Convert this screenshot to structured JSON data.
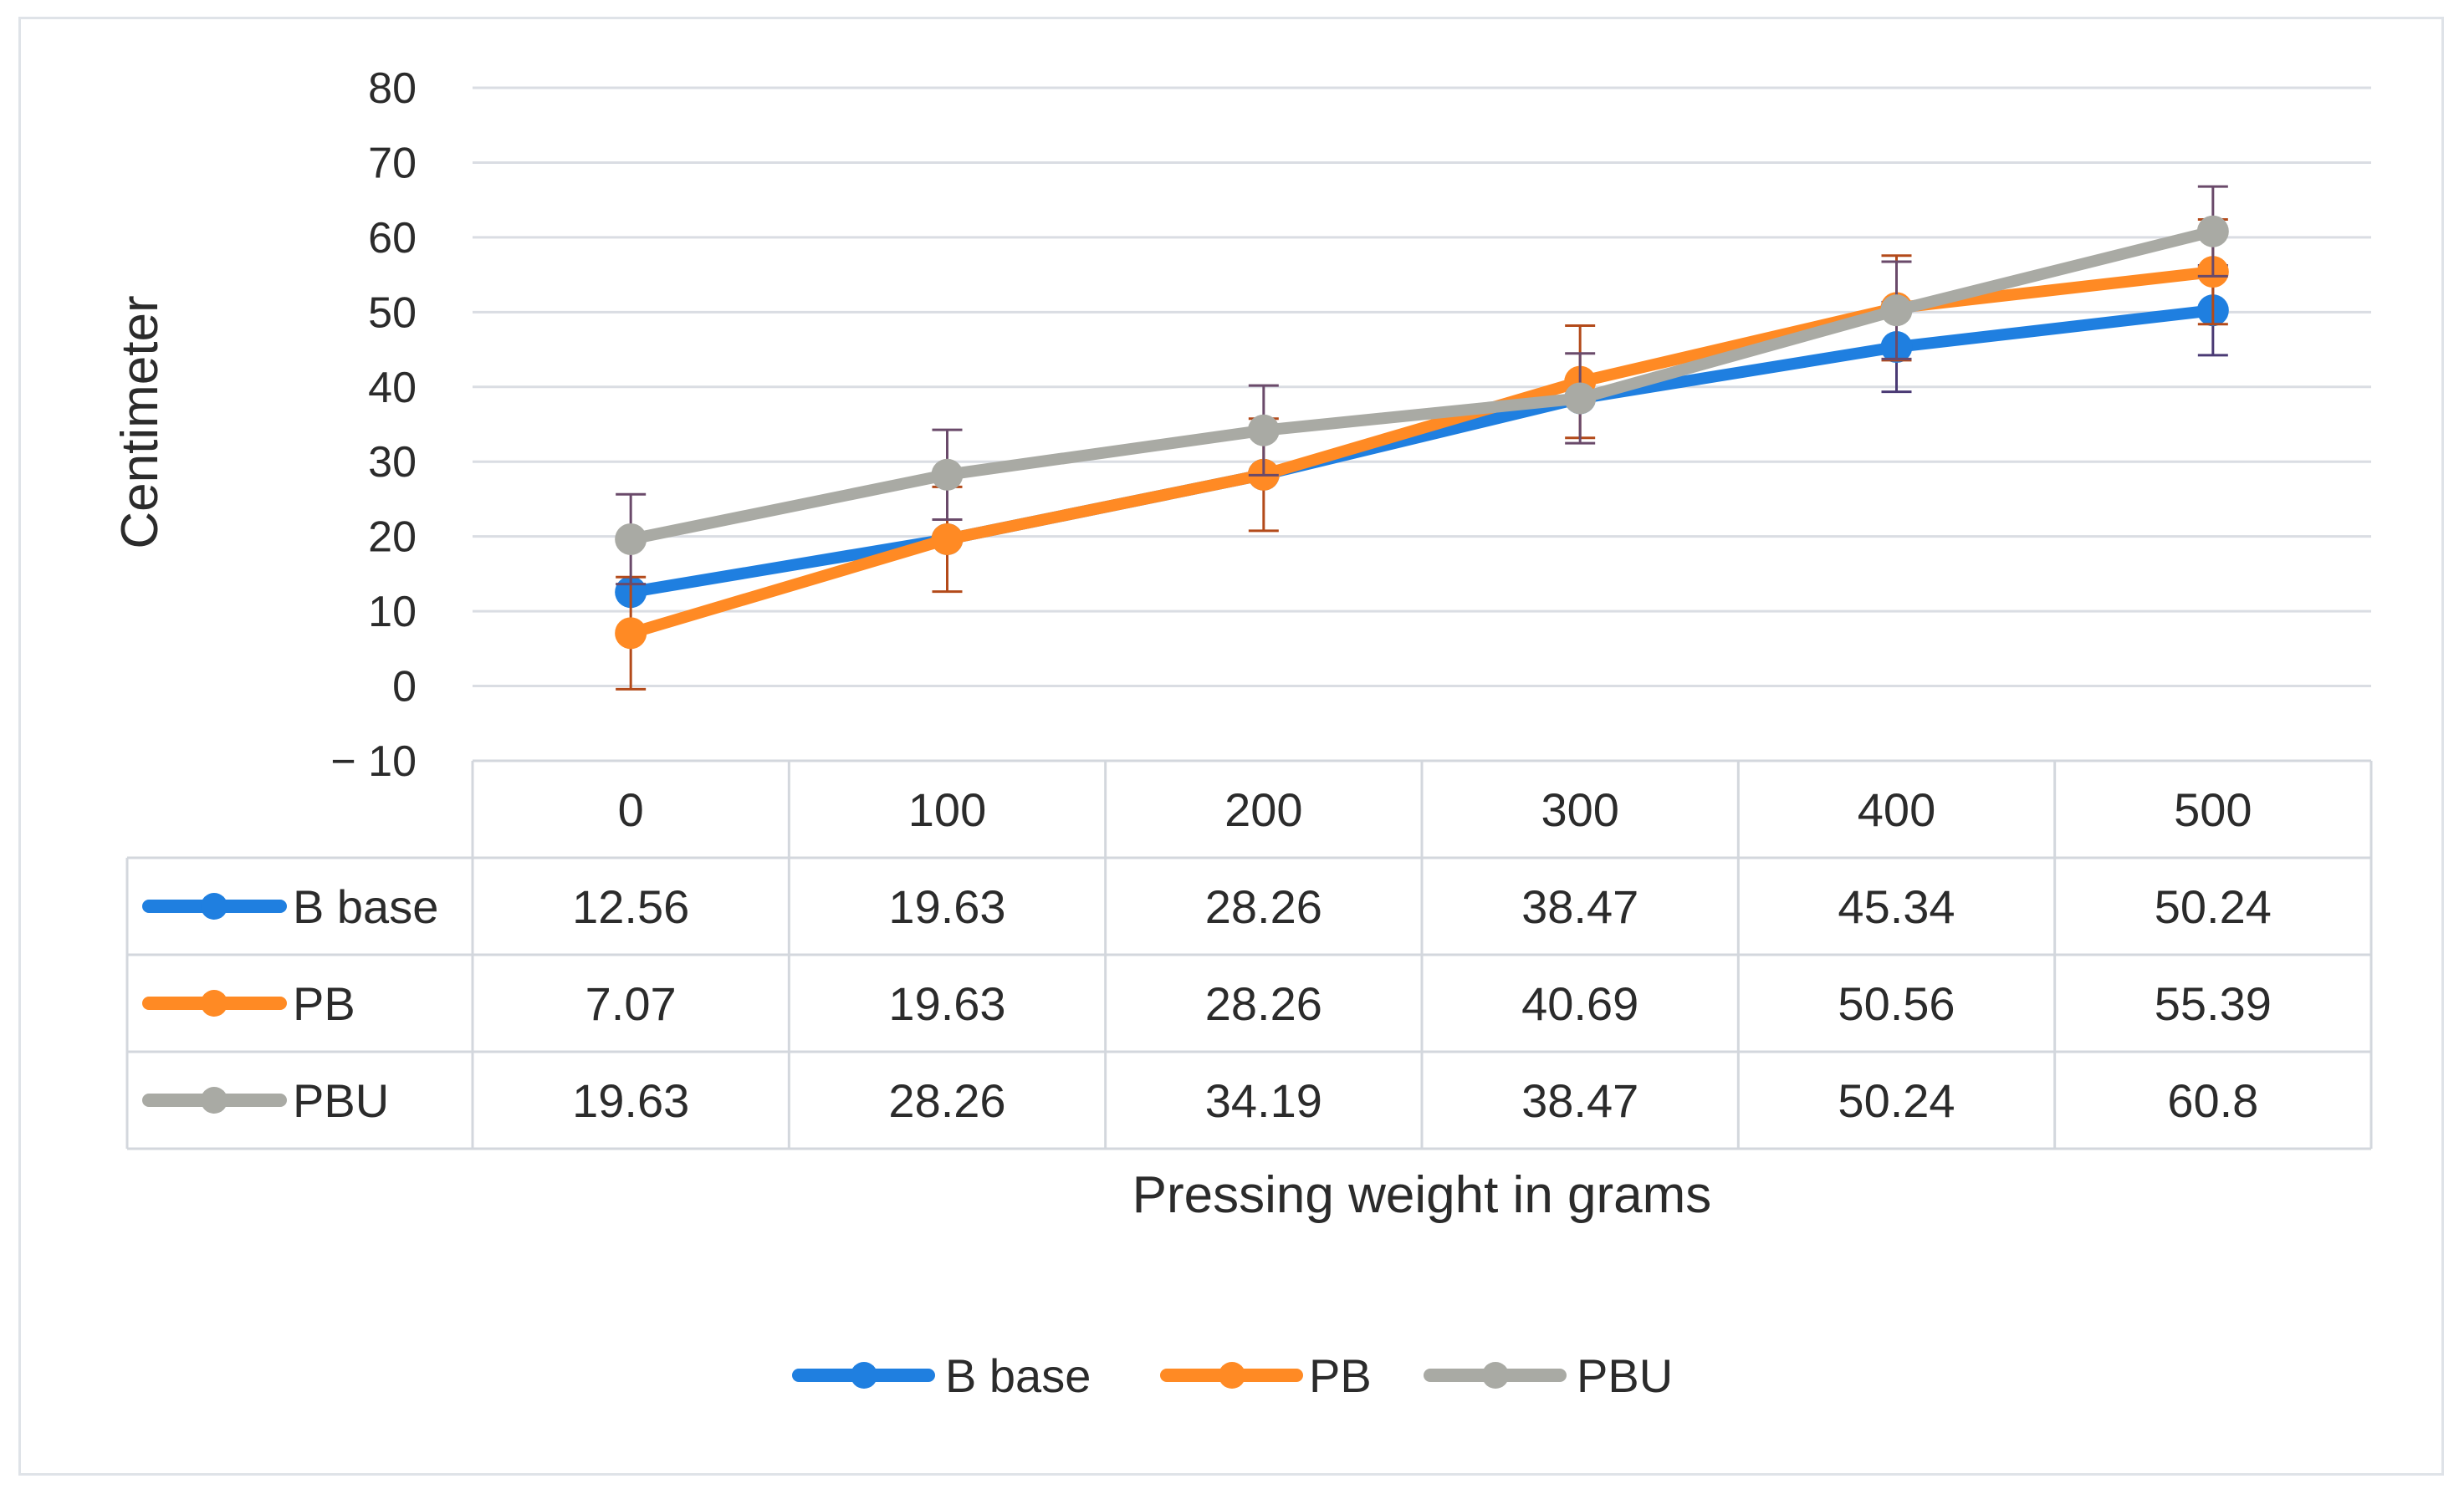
{
  "chart_data": {
    "type": "line",
    "title": "",
    "xlabel": "Pressing weight in grams",
    "ylabel": "Centimeter",
    "ylim": [
      -10,
      80
    ],
    "yticks": [
      "80",
      "70",
      "60",
      "50",
      "40",
      "30",
      "20",
      "10",
      "0",
      "− 10"
    ],
    "ytick_values": [
      80,
      70,
      60,
      50,
      40,
      30,
      20,
      10,
      0,
      -10
    ],
    "categories": [
      "0",
      "100",
      "200",
      "300",
      "400",
      "500"
    ],
    "grid": true,
    "legend_position": "bottom",
    "has_data_table": true,
    "series": [
      {
        "name": "B base",
        "color": "#1f7fe0",
        "values": [
          12.56,
          19.63,
          28.26,
          38.47,
          45.34,
          50.24
        ],
        "labels": [
          "12.56",
          "19.63",
          "28.26",
          "38.47",
          "45.34",
          "50.24"
        ],
        "error": [
          0,
          0,
          0,
          0,
          6,
          6
        ]
      },
      {
        "name": "PB",
        "color": "#ff8a24",
        "values": [
          7.07,
          19.63,
          28.26,
          40.69,
          50.56,
          55.39
        ],
        "labels": [
          "7.07",
          "19.63",
          "28.26",
          "40.69",
          "50.56",
          "55.39"
        ],
        "error": [
          7.5,
          7,
          7.5,
          7.5,
          7,
          7
        ]
      },
      {
        "name": "PBU",
        "color": "#a9aaa4",
        "values": [
          19.63,
          28.26,
          34.19,
          38.47,
          50.24,
          60.8
        ],
        "labels": [
          "19.63",
          "28.26",
          "34.19",
          "38.47",
          "50.24",
          "60.8"
        ],
        "error": [
          6,
          6,
          6,
          6,
          6.5,
          6
        ]
      }
    ]
  }
}
